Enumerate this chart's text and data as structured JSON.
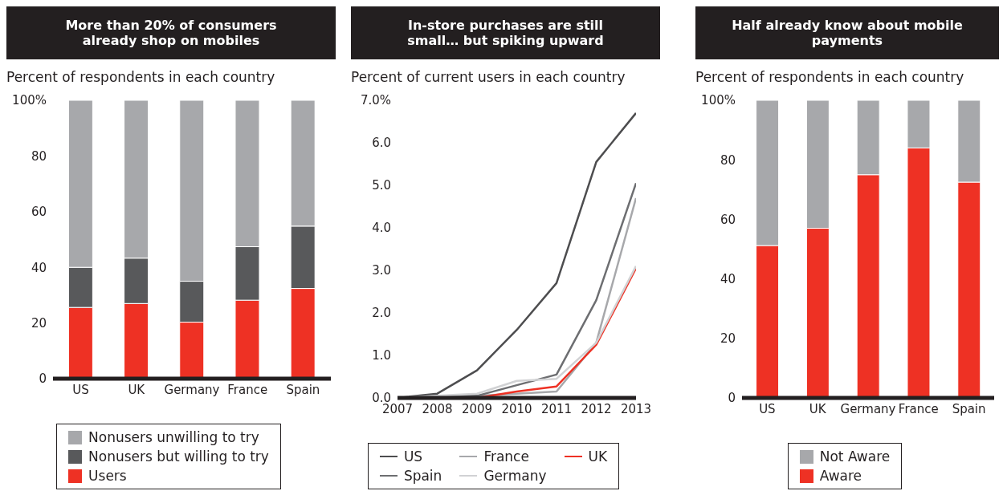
{
  "chart_data": [
    {
      "type": "bar",
      "title": "More than 20% of consumers already shop on mobiles",
      "subtitle": "Percent of respondents in each country",
      "categories": [
        "US",
        "UK",
        "Germany",
        "France",
        "Spain"
      ],
      "stacked": true,
      "ylim": [
        0,
        100
      ],
      "yticks": [
        0,
        20,
        40,
        60,
        80,
        {
          "value": 100,
          "label": "100%"
        }
      ],
      "legend": "bottom",
      "series": [
        {
          "name": "Users",
          "color": "#ee3124",
          "values": [
            25.6,
            27,
            20.3,
            28.2,
            32.4
          ]
        },
        {
          "name": "Nonusers but willing to try",
          "color": "#58595b",
          "values": [
            14.4,
            16.3,
            14.7,
            19.2,
            22.4
          ]
        },
        {
          "name": "Nonusers unwilling to try",
          "color": "#a7a8ab",
          "values": [
            60,
            56.7,
            65,
            52.6,
            45.2
          ]
        }
      ]
    },
    {
      "type": "line",
      "title": "In-store purchases are still small… but spiking upward",
      "subtitle": "Percent of current users in each country",
      "x": [
        2007,
        2008,
        2009,
        2010,
        2011,
        2012,
        2013
      ],
      "xlim": [
        2007,
        2013
      ],
      "xticks": [
        2007,
        2008,
        2009,
        2010,
        2011,
        2012,
        2013
      ],
      "ylim": [
        0,
        7
      ],
      "yticks": [
        {
          "value": 0,
          "label": "0.0"
        },
        {
          "value": 1,
          "label": "1.0"
        },
        {
          "value": 2,
          "label": "2.0"
        },
        {
          "value": 3,
          "label": "3.0"
        },
        {
          "value": 4,
          "label": "4.0"
        },
        {
          "value": 5,
          "label": "5.0"
        },
        {
          "value": 6,
          "label": "6.0"
        },
        {
          "value": 7,
          "label": "7.0%"
        }
      ],
      "legend": "bottom",
      "marker": "none",
      "line_style": "solid",
      "series": [
        {
          "name": "US",
          "color": "#4d4d4f",
          "values": [
            0,
            0.1,
            0.65,
            1.6,
            2.7,
            5.55,
            6.7
          ]
        },
        {
          "name": "France",
          "color": "#a7a8ab",
          "values": [
            0,
            0,
            0.05,
            0.1,
            0.15,
            1.3,
            4.7
          ]
        },
        {
          "name": "UK",
          "color": "#ee3124",
          "values": [
            0,
            0,
            0,
            0.15,
            0.27,
            1.25,
            3.05
          ]
        },
        {
          "name": "Spain",
          "color": "#6d6e71",
          "values": [
            0,
            0.05,
            0.05,
            0.3,
            0.55,
            2.3,
            5.05
          ]
        },
        {
          "name": "Germany",
          "color": "#d1d2d4",
          "values": [
            0,
            0.05,
            0.1,
            0.4,
            0.45,
            1.3,
            3.1
          ]
        }
      ]
    },
    {
      "type": "bar",
      "title": "Half already know about mobile payments",
      "subtitle": "Percent of respondents in each country",
      "categories": [
        "US",
        "UK",
        "Germany",
        "France",
        "Spain"
      ],
      "stacked": true,
      "ylim": [
        0,
        100
      ],
      "yticks": [
        0,
        20,
        40,
        60,
        80,
        {
          "value": 100,
          "label": "100%"
        }
      ],
      "legend": "bottom",
      "series": [
        {
          "name": "Aware",
          "color": "#ee3124",
          "values": [
            51.2,
            57,
            75,
            84,
            72.5
          ]
        },
        {
          "name": "Not Aware",
          "color": "#a7a8ab",
          "values": [
            48.8,
            43,
            25,
            16,
            27.5
          ]
        }
      ]
    }
  ]
}
